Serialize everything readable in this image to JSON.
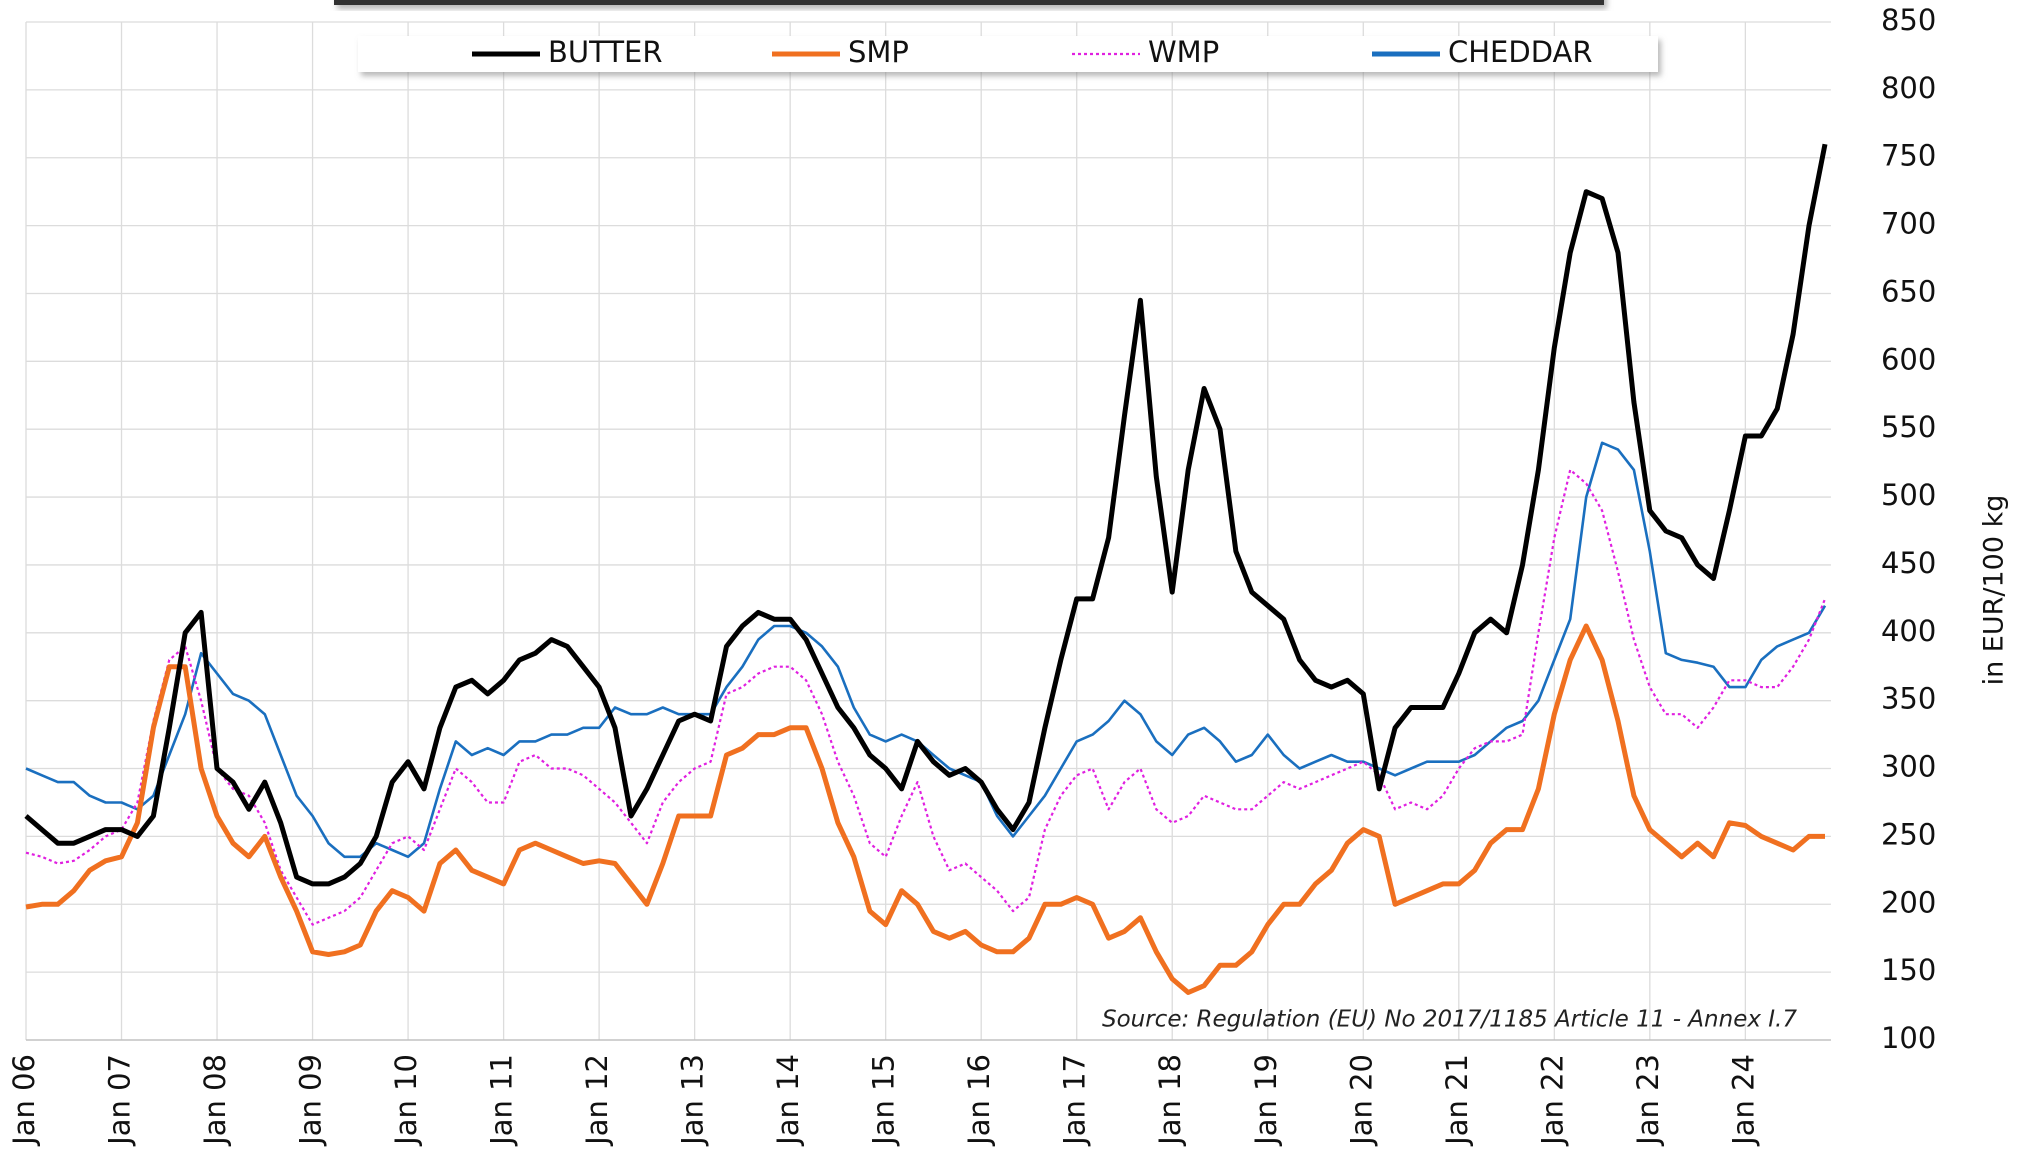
{
  "chart_data": {
    "type": "line",
    "legend": "top",
    "grid": true,
    "y_axis_side": "right",
    "y_label": "in EUR/100 kg",
    "annotation": "Source: Regulation (EU) No 2017/1185 Article 11 - Annex I.7",
    "ylim": [
      100,
      850
    ],
    "yticks": [
      100,
      150,
      200,
      250,
      300,
      350,
      400,
      450,
      500,
      550,
      600,
      650,
      700,
      750,
      800,
      850
    ],
    "categories": [
      "Jan 06",
      null,
      null,
      null,
      null,
      null,
      "Jan 07",
      null,
      null,
      null,
      null,
      null,
      "Jan 08",
      null,
      null,
      null,
      null,
      null,
      "Jan 09",
      null,
      null,
      null,
      null,
      null,
      "Jan 10",
      null,
      null,
      null,
      null,
      null,
      "Jan 11",
      null,
      null,
      null,
      null,
      null,
      "Jan 12",
      null,
      null,
      null,
      null,
      null,
      "Jan 13",
      null,
      null,
      null,
      null,
      null,
      "Jan 14",
      null,
      null,
      null,
      null,
      null,
      "Jan 15",
      null,
      null,
      null,
      null,
      null,
      "Jan 16",
      null,
      null,
      null,
      null,
      null,
      "Jan 17",
      null,
      null,
      null,
      null,
      null,
      "Jan 18",
      null,
      null,
      null,
      null,
      null,
      "Jan 19",
      null,
      null,
      null,
      null,
      null,
      "Jan 20",
      null,
      null,
      null,
      null,
      null,
      "Jan 21",
      null,
      null,
      null,
      null,
      null,
      "Jan 22",
      null,
      null,
      null,
      null,
      null,
      "Jan 23",
      null,
      null,
      null,
      null,
      null,
      "Jan 24",
      null,
      null,
      null,
      null,
      null
    ],
    "series": [
      {
        "name": "BUTTER",
        "color": "#000000",
        "style": "solid",
        "values": [
          265,
          255,
          245,
          245,
          250,
          255,
          255,
          250,
          265,
          330,
          400,
          415,
          300,
          290,
          270,
          290,
          260,
          220,
          215,
          215,
          220,
          230,
          250,
          290,
          305,
          285,
          330,
          360,
          365,
          355,
          365,
          380,
          385,
          395,
          390,
          375,
          360,
          330,
          265,
          285,
          310,
          335,
          340,
          335,
          390,
          405,
          415,
          410,
          410,
          395,
          370,
          345,
          330,
          310,
          300,
          285,
          320,
          305,
          295,
          300,
          290,
          270,
          255,
          275,
          330,
          380,
          425,
          425,
          470,
          560,
          645,
          515,
          430,
          520,
          580,
          550,
          460,
          430,
          420,
          410,
          380,
          365,
          360,
          365,
          355,
          285,
          330,
          345,
          345,
          345,
          370,
          400,
          410,
          400,
          450,
          520,
          610,
          680,
          725,
          720,
          680,
          570,
          490,
          475,
          470,
          450,
          440,
          490,
          545,
          545,
          565,
          620,
          700,
          760
        ]
      },
      {
        "name": "SMP",
        "color": "#f07020",
        "style": "solid",
        "values": [
          198,
          200,
          200,
          210,
          225,
          232,
          235,
          260,
          330,
          375,
          375,
          300,
          265,
          245,
          235,
          250,
          220,
          195,
          165,
          163,
          165,
          170,
          195,
          210,
          205,
          195,
          230,
          240,
          225,
          220,
          215,
          240,
          245,
          240,
          235,
          230,
          232,
          230,
          215,
          200,
          230,
          265,
          265,
          265,
          310,
          315,
          325,
          325,
          330,
          330,
          300,
          260,
          235,
          195,
          185,
          210,
          200,
          180,
          175,
          180,
          170,
          165,
          165,
          175,
          200,
          200,
          205,
          200,
          175,
          180,
          190,
          165,
          145,
          135,
          140,
          155,
          155,
          165,
          185,
          200,
          200,
          215,
          225,
          245,
          255,
          250,
          200,
          205,
          210,
          215,
          215,
          225,
          245,
          255,
          255,
          285,
          340,
          380,
          405,
          380,
          335,
          280,
          255,
          245,
          235,
          245,
          235,
          260,
          258,
          250,
          245,
          240,
          250,
          250
        ]
      },
      {
        "name": "WMP",
        "color": "#e020e0",
        "style": "dotted",
        "values": [
          238,
          235,
          230,
          232,
          240,
          250,
          255,
          275,
          335,
          380,
          390,
          350,
          300,
          285,
          280,
          260,
          225,
          205,
          185,
          190,
          195,
          205,
          225,
          245,
          250,
          240,
          270,
          300,
          290,
          275,
          275,
          305,
          310,
          300,
          300,
          295,
          285,
          275,
          260,
          245,
          275,
          290,
          300,
          305,
          355,
          360,
          370,
          375,
          375,
          365,
          340,
          305,
          280,
          245,
          235,
          265,
          290,
          250,
          225,
          230,
          220,
          210,
          195,
          205,
          255,
          280,
          295,
          300,
          270,
          290,
          300,
          270,
          260,
          265,
          280,
          275,
          270,
          270,
          280,
          290,
          285,
          290,
          295,
          300,
          305,
          295,
          270,
          275,
          270,
          280,
          300,
          315,
          320,
          320,
          325,
          400,
          470,
          520,
          510,
          490,
          445,
          395,
          360,
          340,
          340,
          330,
          345,
          365,
          365,
          360,
          360,
          375,
          395,
          425
        ]
      },
      {
        "name": "CHEDDAR",
        "color": "#1a6fbf",
        "style": "solid",
        "values": [
          300,
          295,
          290,
          290,
          280,
          275,
          275,
          270,
          280,
          310,
          340,
          385,
          370,
          355,
          350,
          340,
          310,
          280,
          265,
          245,
          235,
          235,
          245,
          240,
          235,
          245,
          285,
          320,
          310,
          315,
          310,
          320,
          320,
          325,
          325,
          330,
          330,
          345,
          340,
          340,
          345,
          340,
          340,
          340,
          360,
          375,
          395,
          405,
          405,
          400,
          390,
          375,
          345,
          325,
          320,
          325,
          320,
          310,
          300,
          295,
          290,
          265,
          250,
          265,
          280,
          300,
          320,
          325,
          335,
          350,
          340,
          320,
          310,
          325,
          330,
          320,
          305,
          310,
          325,
          310,
          300,
          305,
          310,
          305,
          305,
          300,
          295,
          300,
          305,
          305,
          305,
          310,
          320,
          330,
          335,
          350,
          380,
          410,
          500,
          540,
          535,
          520,
          460,
          385,
          380,
          378,
          375,
          360,
          360,
          380,
          390,
          395,
          400,
          420
        ]
      }
    ]
  }
}
